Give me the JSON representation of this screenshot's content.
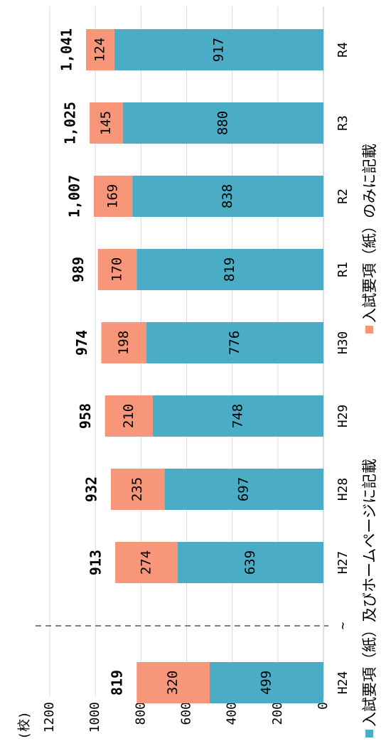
{
  "chart_data": {
    "type": "stacked_bar",
    "unit_label": "(校)",
    "categories": [
      "H24",
      "H27",
      "H28",
      "H29",
      "H30",
      "R1",
      "R2",
      "R3",
      "R4"
    ],
    "break_label": "~",
    "series": [
      {
        "name": "入試要項（紙）及びホームページに記載",
        "color": "#4bacc6",
        "values": [
          499,
          639,
          697,
          748,
          776,
          819,
          838,
          880,
          917
        ]
      },
      {
        "name": "入試要項（紙）のみに記載",
        "color": "#f79679",
        "values": [
          320,
          274,
          235,
          210,
          198,
          170,
          169,
          145,
          124
        ]
      }
    ],
    "totals": [
      819,
      913,
      932,
      958,
      974,
      989,
      1007,
      1025,
      1041
    ],
    "total_labels": [
      "819",
      "913",
      "932",
      "958",
      "974",
      "989",
      "1,007",
      "1,025",
      "1,041"
    ],
    "ylim": [
      0,
      1200
    ],
    "yticks": [
      0,
      200,
      400,
      600,
      800,
      1000,
      1200
    ],
    "grid": true
  }
}
